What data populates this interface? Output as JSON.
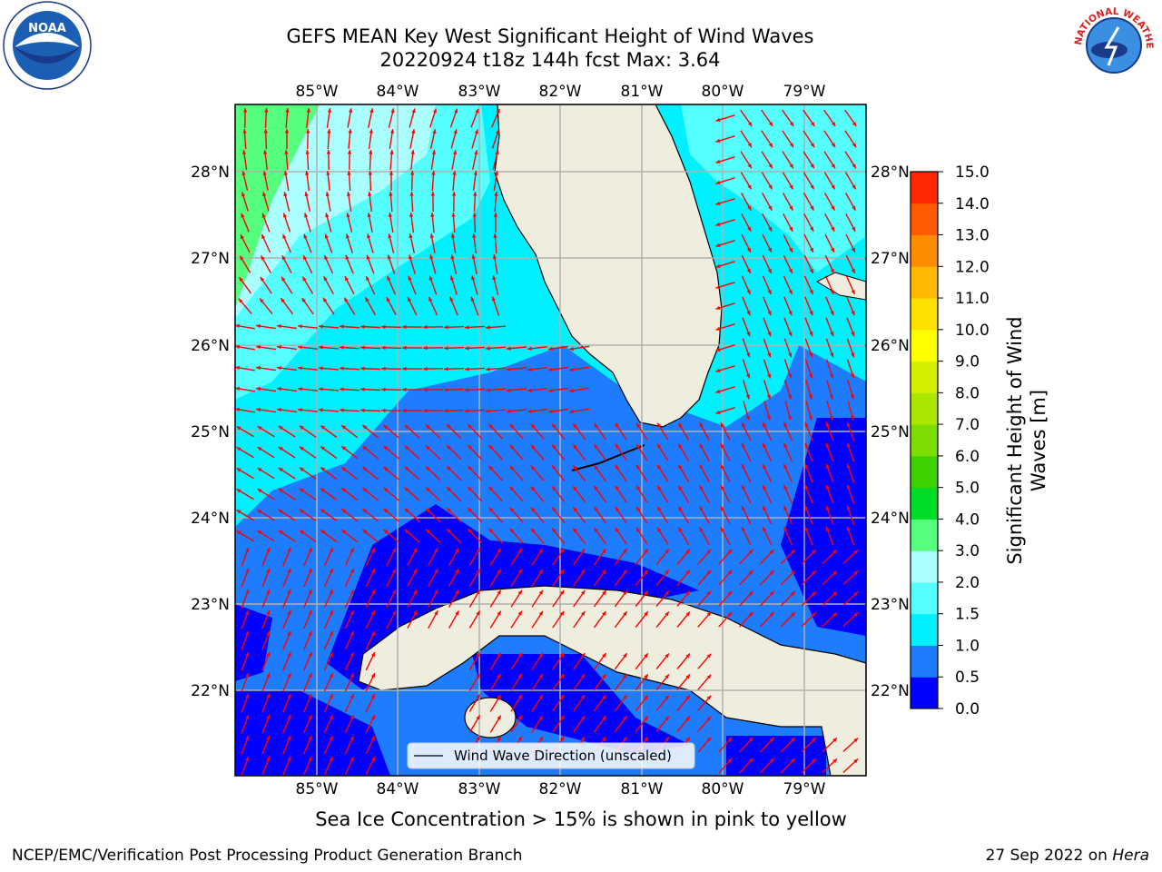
{
  "header": {
    "title_line1": "GEFS MEAN Key West Significant Height of Wind Waves",
    "title_line2": "20220924 t18z 144h fcst   Max: 3.64"
  },
  "map": {
    "lon_ticks": [
      "85°W",
      "84°W",
      "83°W",
      "82°W",
      "81°W",
      "80°W",
      "79°W"
    ],
    "lat_ticks": [
      "28°N",
      "27°N",
      "26°N",
      "25°N",
      "24°N",
      "23°N",
      "22°N"
    ],
    "legend_label": "Wind Wave Direction (unscaled)",
    "arrow_color": "#ff0000",
    "land_color": "#efeddd"
  },
  "colorbar": {
    "label_line1": "Significant Height of Wind",
    "label_line2": "Waves [m]",
    "ticks": [
      "0.0",
      "0.5",
      "1.0",
      "1.5",
      "2.0",
      "3.0",
      "4.0",
      "5.0",
      "6.0",
      "7.0",
      "8.0",
      "9.0",
      "10.0",
      "11.0",
      "12.0",
      "13.0",
      "14.0",
      "15.0"
    ],
    "colors": [
      "#0000ff",
      "#1e7cff",
      "#00f0ff",
      "#55ffff",
      "#aaffff",
      "#55ff7d",
      "#00dc28",
      "#3cd200",
      "#7ddc00",
      "#aae600",
      "#d4f000",
      "#ffff00",
      "#ffe100",
      "#ffb900",
      "#ff8c00",
      "#ff5a00",
      "#ff2800",
      "#ff0000"
    ]
  },
  "notes": {
    "sea_ice": "Sea Ice Concentration > 15% is shown in pink to yellow",
    "credit": "NCEP/EMC/Verification Post Processing Product Generation Branch",
    "date_prefix": "27 Sep 2022 on ",
    "host": "Hera"
  },
  "logos": {
    "noaa_text": "NOAA",
    "nws_text": "NATIONAL WEATHER SERVICE"
  }
}
